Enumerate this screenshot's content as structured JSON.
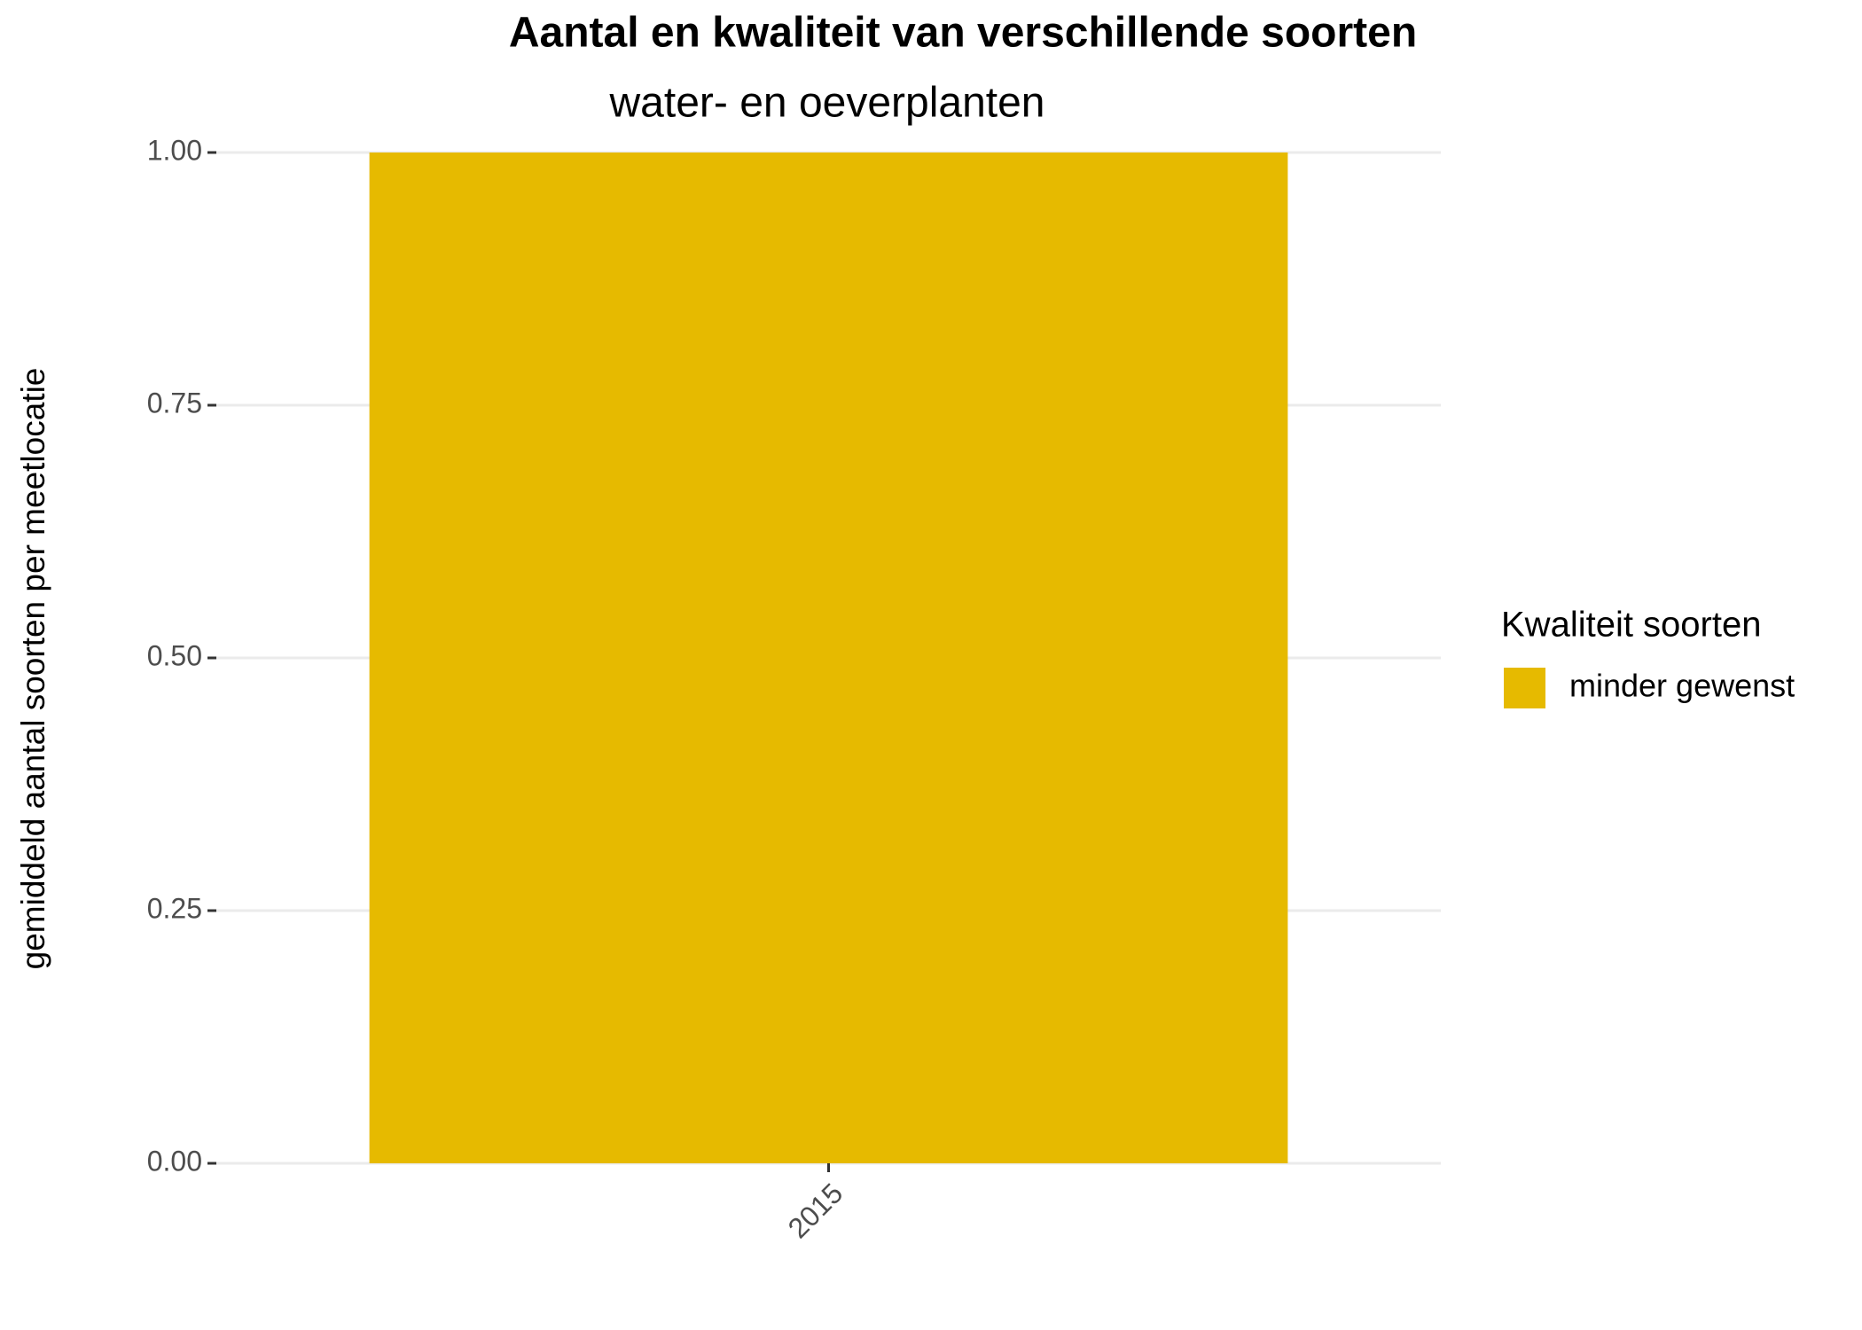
{
  "chart_data": {
    "type": "bar",
    "title": "Aantal en kwaliteit van verschillende soorten",
    "subtitle": "water- en oeverplanten",
    "y_label": "gemiddeld aantal soorten per meetlocatie",
    "legend_title": "Kwaliteit soorten",
    "legend_position": "right",
    "categories": [
      "2015"
    ],
    "series": [
      {
        "name": "minder gewenst",
        "color": "#E6BA00",
        "values": [
          1
        ]
      }
    ],
    "ylim": [
      0,
      1
    ],
    "yticks": [
      {
        "value": 0,
        "label": "0.00"
      },
      {
        "value": 0.25,
        "label": "0.25"
      },
      {
        "value": 0.5,
        "label": "0.50"
      },
      {
        "value": 0.75,
        "label": "0.75"
      },
      {
        "value": 1,
        "label": "1.00"
      }
    ],
    "grid": true
  }
}
